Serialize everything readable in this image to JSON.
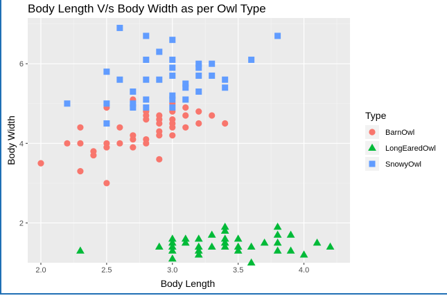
{
  "chart_data": {
    "type": "scatter",
    "title": "Body Length V/s Body Width as per Owl Type",
    "xlabel": "Body Length",
    "ylabel": "Body Width",
    "xlim": [
      1.9,
      4.35
    ],
    "ylim": [
      1.0,
      7.15
    ],
    "x_ticks": [
      2.0,
      2.5,
      3.0,
      3.5,
      4.0
    ],
    "x_tick_labels": [
      "2.0",
      "2.5",
      "3.0",
      "3.5",
      "4.0"
    ],
    "y_ticks": [
      2,
      4,
      6
    ],
    "y_tick_labels": [
      "2",
      "4",
      "6"
    ],
    "grid": true,
    "legend": {
      "title": "Type",
      "position": "right"
    },
    "series": [
      {
        "name": "BarnOwl",
        "color": "#F8766D",
        "marker": "circle",
        "points": [
          [
            2.0,
            3.5
          ],
          [
            2.2,
            4.0
          ],
          [
            2.3,
            4.4
          ],
          [
            2.3,
            4.0
          ],
          [
            2.3,
            3.3
          ],
          [
            2.4,
            3.8
          ],
          [
            2.4,
            3.7
          ],
          [
            2.5,
            4.9
          ],
          [
            2.5,
            4.0
          ],
          [
            2.5,
            3.9
          ],
          [
            2.5,
            3.0
          ],
          [
            2.6,
            4.4
          ],
          [
            2.6,
            4.0
          ],
          [
            2.7,
            5.1
          ],
          [
            2.7,
            4.2
          ],
          [
            2.7,
            4.1
          ],
          [
            2.7,
            3.9
          ],
          [
            2.8,
            4.8
          ],
          [
            2.8,
            4.7
          ],
          [
            2.8,
            4.6
          ],
          [
            2.8,
            4.1
          ],
          [
            2.8,
            4.0
          ],
          [
            2.9,
            4.7
          ],
          [
            2.9,
            4.6
          ],
          [
            2.9,
            4.5
          ],
          [
            2.9,
            4.3
          ],
          [
            2.9,
            4.2
          ],
          [
            2.9,
            3.6
          ],
          [
            3.0,
            5.0
          ],
          [
            3.0,
            4.8
          ],
          [
            3.0,
            4.6
          ],
          [
            3.0,
            4.5
          ],
          [
            3.0,
            4.4
          ],
          [
            3.0,
            4.2
          ],
          [
            3.1,
            4.9
          ],
          [
            3.1,
            4.7
          ],
          [
            3.1,
            4.4
          ],
          [
            3.2,
            4.8
          ],
          [
            3.2,
            4.5
          ],
          [
            3.3,
            4.7
          ],
          [
            3.4,
            4.5
          ]
        ]
      },
      {
        "name": "LongEaredOwl",
        "color": "#00BA38",
        "marker": "triangle",
        "points": [
          [
            2.3,
            1.3
          ],
          [
            2.9,
            1.4
          ],
          [
            3.0,
            1.6
          ],
          [
            3.0,
            1.5
          ],
          [
            3.0,
            1.4
          ],
          [
            3.0,
            1.3
          ],
          [
            3.0,
            1.1
          ],
          [
            3.1,
            1.6
          ],
          [
            3.1,
            1.5
          ],
          [
            3.2,
            1.6
          ],
          [
            3.2,
            1.4
          ],
          [
            3.2,
            1.3
          ],
          [
            3.2,
            1.2
          ],
          [
            3.3,
            1.7
          ],
          [
            3.3,
            1.4
          ],
          [
            3.4,
            1.9
          ],
          [
            3.4,
            1.8
          ],
          [
            3.4,
            1.6
          ],
          [
            3.4,
            1.5
          ],
          [
            3.4,
            1.4
          ],
          [
            3.5,
            1.6
          ],
          [
            3.5,
            1.4
          ],
          [
            3.5,
            1.3
          ],
          [
            3.6,
            1.4
          ],
          [
            3.6,
            1.0
          ],
          [
            3.7,
            1.5
          ],
          [
            3.8,
            1.9
          ],
          [
            3.8,
            1.7
          ],
          [
            3.8,
            1.5
          ],
          [
            3.8,
            1.3
          ],
          [
            3.9,
            1.7
          ],
          [
            3.9,
            1.3
          ],
          [
            4.0,
            1.2
          ],
          [
            4.1,
            1.5
          ],
          [
            4.2,
            1.4
          ]
        ]
      },
      {
        "name": "SnowyOwl",
        "color": "#619CFF",
        "marker": "square",
        "points": [
          [
            2.2,
            5.0
          ],
          [
            2.5,
            5.8
          ],
          [
            2.5,
            5.0
          ],
          [
            2.5,
            4.5
          ],
          [
            2.6,
            5.6
          ],
          [
            2.6,
            6.9
          ],
          [
            2.7,
            5.3
          ],
          [
            2.7,
            5.0
          ],
          [
            2.7,
            4.9
          ],
          [
            2.8,
            6.7
          ],
          [
            2.8,
            6.1
          ],
          [
            2.8,
            5.6
          ],
          [
            2.8,
            5.1
          ],
          [
            2.8,
            4.9
          ],
          [
            2.9,
            6.3
          ],
          [
            2.9,
            5.6
          ],
          [
            3.0,
            6.6
          ],
          [
            3.0,
            6.1
          ],
          [
            3.0,
            5.9
          ],
          [
            3.0,
            5.7
          ],
          [
            3.0,
            5.2
          ],
          [
            3.0,
            5.1
          ],
          [
            3.0,
            4.9
          ],
          [
            3.1,
            5.5
          ],
          [
            3.1,
            5.4
          ],
          [
            3.1,
            5.1
          ],
          [
            3.2,
            6.0
          ],
          [
            3.2,
            5.9
          ],
          [
            3.2,
            5.7
          ],
          [
            3.2,
            5.3
          ],
          [
            3.3,
            6.0
          ],
          [
            3.3,
            5.7
          ],
          [
            3.4,
            5.6
          ],
          [
            3.4,
            5.4
          ],
          [
            3.6,
            6.1
          ],
          [
            3.8,
            6.7
          ]
        ]
      }
    ]
  }
}
